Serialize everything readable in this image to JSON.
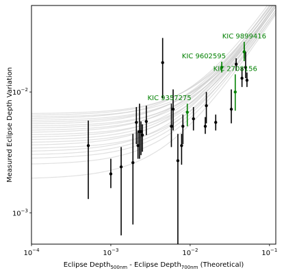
{
  "chart_data": {
    "type": "scatter",
    "title": "",
    "xlabel": {
      "main": "Eclipse Depth",
      "sub1": "500nm",
      "mid": " - Eclipse Depth",
      "sub2": "700nm",
      "tail": " (Theoretical)"
    },
    "ylabel": "Measured Eclipse Depth Variation",
    "xscale": "log",
    "yscale": "log",
    "xlim": [
      0.0001,
      0.12
    ],
    "ylim": [
      0.00055,
      0.052
    ],
    "x_ticks": [
      {
        "value": 0.0001,
        "base": "10",
        "exp": "−4"
      },
      {
        "value": 0.001,
        "base": "10",
        "exp": "−3"
      },
      {
        "value": 0.01,
        "base": "10",
        "exp": "−2"
      },
      {
        "value": 0.1,
        "base": "10",
        "exp": "−1"
      }
    ],
    "y_ticks": [
      {
        "value": 0.001,
        "base": "10",
        "exp": "−3"
      },
      {
        "value": 0.01,
        "base": "10",
        "exp": "−2"
      }
    ],
    "colors": {
      "points": "#000000",
      "highlight": "#008000",
      "models": "#cccccc"
    },
    "model_curves": [
      {
        "a": 0.0028,
        "b": 0.75
      },
      {
        "a": 0.003,
        "b": 0.8
      },
      {
        "a": 0.0032,
        "b": 0.85
      },
      {
        "a": 0.0034,
        "b": 0.7
      },
      {
        "a": 0.0036,
        "b": 0.9
      },
      {
        "a": 0.0038,
        "b": 0.78
      },
      {
        "a": 0.004,
        "b": 0.82
      },
      {
        "a": 0.0042,
        "b": 0.88
      },
      {
        "a": 0.0044,
        "b": 0.72
      },
      {
        "a": 0.0046,
        "b": 0.95
      },
      {
        "a": 0.0048,
        "b": 0.8
      },
      {
        "a": 0.005,
        "b": 0.86
      },
      {
        "a": 0.0052,
        "b": 0.76
      },
      {
        "a": 0.0054,
        "b": 0.92
      },
      {
        "a": 0.0056,
        "b": 0.84
      },
      {
        "a": 0.0058,
        "b": 0.78
      },
      {
        "a": 0.006,
        "b": 0.98
      },
      {
        "a": 0.0062,
        "b": 0.74
      },
      {
        "a": 0.0064,
        "b": 0.88
      },
      {
        "a": 0.0066,
        "b": 0.82
      },
      {
        "a": 0.0019,
        "b": 0.7
      },
      {
        "a": 0.0025,
        "b": 0.72
      }
    ],
    "points": [
      {
        "x": 0.00052,
        "y": 0.0036,
        "ylo": 0.0013,
        "yhi": 0.0058
      },
      {
        "x": 0.001,
        "y": 0.0021,
        "ylo": 0.0016,
        "yhi": 0.0028
      },
      {
        "x": 0.00135,
        "y": 0.0024,
        "ylo": 0.00065,
        "yhi": 0.0035
      },
      {
        "x": 0.0019,
        "y": 0.0026,
        "ylo": 0.0008,
        "yhi": 0.0045
      },
      {
        "x": 0.0021,
        "y": 0.0056,
        "ylo": 0.0037,
        "yhi": 0.0075
      },
      {
        "x": 0.0022,
        "y": 0.0036,
        "ylo": 0.0028,
        "yhi": 0.0048
      },
      {
        "x": 0.0023,
        "y": 0.0047,
        "ylo": 0.0028,
        "yhi": 0.008
      },
      {
        "x": 0.0024,
        "y": 0.0047,
        "ylo": 0.003,
        "yhi": 0.0057
      },
      {
        "x": 0.0025,
        "y": 0.0044,
        "ylo": 0.0032,
        "yhi": 0.0054
      },
      {
        "x": 0.0028,
        "y": 0.0057,
        "ylo": 0.0044,
        "yhi": 0.0077
      },
      {
        "x": 0.0045,
        "y": 0.0175,
        "ylo": 0.0088,
        "yhi": 0.028
      },
      {
        "x": 0.0058,
        "y": 0.0052,
        "ylo": 0.0035,
        "yhi": 0.008
      },
      {
        "x": 0.0061,
        "y": 0.0072,
        "ylo": 0.0048,
        "yhi": 0.0105
      },
      {
        "x": 0.007,
        "y": 0.0027,
        "ylo": 0.00055,
        "yhi": 0.0045
      },
      {
        "x": 0.0078,
        "y": 0.0036,
        "ylo": 0.0025,
        "yhi": 0.0045
      },
      {
        "x": 0.0081,
        "y": 0.0052,
        "ylo": 0.0037,
        "yhi": 0.0065
      },
      {
        "x": 0.011,
        "y": 0.006,
        "ylo": 0.0048,
        "yhi": 0.0075
      },
      {
        "x": 0.0155,
        "y": 0.0052,
        "ylo": 0.0045,
        "yhi": 0.0062
      },
      {
        "x": 0.016,
        "y": 0.0077,
        "ylo": 0.0055,
        "yhi": 0.01
      },
      {
        "x": 0.021,
        "y": 0.0056,
        "ylo": 0.0048,
        "yhi": 0.0065
      },
      {
        "x": 0.033,
        "y": 0.0072,
        "ylo": 0.0055,
        "yhi": 0.0105
      },
      {
        "x": 0.038,
        "y": 0.017,
        "ylo": 0.015,
        "yhi": 0.019
      },
      {
        "x": 0.045,
        "y": 0.013,
        "ylo": 0.011,
        "yhi": 0.016
      },
      {
        "x": 0.048,
        "y": 0.0215,
        "ylo": 0.019,
        "yhi": 0.0245
      },
      {
        "x": 0.05,
        "y": 0.016,
        "ylo": 0.013,
        "yhi": 0.0215
      },
      {
        "x": 0.052,
        "y": 0.0125,
        "ylo": 0.011,
        "yhi": 0.0145
      }
    ],
    "highlighted_points": [
      {
        "x": 0.0092,
        "y": 0.0068,
        "ylo": 0.0052,
        "yhi": 0.008,
        "label": "KIC 9357275",
        "label_side": "left"
      },
      {
        "x": 0.025,
        "y": 0.016,
        "ylo": 0.0145,
        "yhi": 0.0178,
        "label": "KIC 9602595",
        "label_side": "left"
      },
      {
        "x": 0.037,
        "y": 0.01,
        "ylo": 0.007,
        "yhi": 0.014,
        "label": "KIC 2708156",
        "label_side": "center"
      },
      {
        "x": 0.048,
        "y": 0.0215,
        "ylo": 0.018,
        "yhi": 0.026,
        "label": "KIC 9899416",
        "label_side": "center"
      }
    ]
  }
}
